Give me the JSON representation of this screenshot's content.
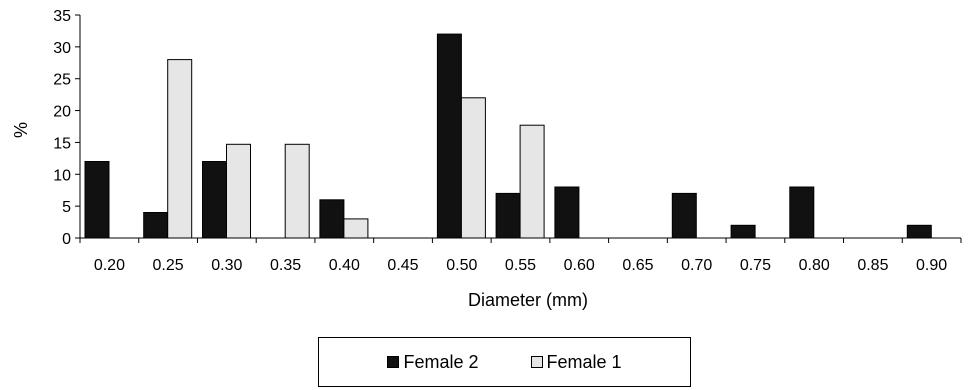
{
  "chart_data": {
    "type": "bar",
    "title": "",
    "xlabel": "Diameter (mm)",
    "ylabel": "%",
    "ylim": [
      0,
      35
    ],
    "yticks": [
      0,
      5,
      10,
      15,
      20,
      25,
      30,
      35
    ],
    "categories": [
      "0.20",
      "0.25",
      "0.30",
      "0.35",
      "0.40",
      "0.45",
      "0.50",
      "0.55",
      "0.60",
      "0.65",
      "0.70",
      "0.75",
      "0.80",
      "0.85",
      "0.90"
    ],
    "series": [
      {
        "name": "Female 2",
        "color": "#111111",
        "values": [
          12,
          4,
          12,
          0,
          6,
          0,
          32,
          7,
          8,
          0,
          7,
          2,
          8,
          0,
          2
        ]
      },
      {
        "name": "Female 1",
        "color": "#e6e6e6",
        "values": [
          0,
          28,
          14.7,
          14.7,
          3,
          0,
          22,
          17.7,
          0,
          0,
          0,
          0,
          0,
          0,
          0
        ]
      }
    ],
    "legend_position": "bottom",
    "grid": false
  }
}
